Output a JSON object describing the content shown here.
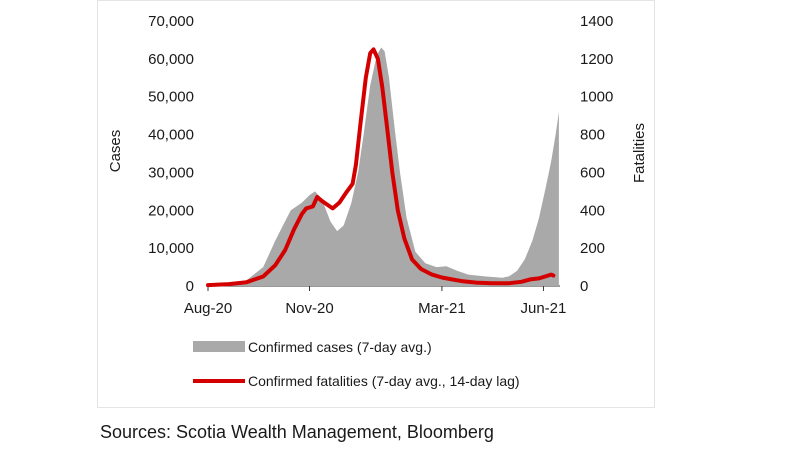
{
  "chart_data": {
    "type": "area",
    "xlabel": "",
    "ylabel": "Cases",
    "y2label": "Fatalities",
    "x_tick_labels": [
      "Aug-20",
      "Nov-20",
      "Mar-21",
      "Jun-21"
    ],
    "x_tick_dates": [
      "2020-08-01",
      "2020-11-01",
      "2021-03-01",
      "2021-06-01"
    ],
    "y_ticks": [
      "0",
      "10,000",
      "20,000",
      "30,000",
      "40,000",
      "50,000",
      "60,000",
      "70,000"
    ],
    "y2_ticks": [
      "0",
      "200",
      "400",
      "600",
      "800",
      "1000",
      "1200",
      "1400"
    ],
    "ylim": [
      0,
      70000
    ],
    "y2lim": [
      0,
      1400
    ],
    "xlim": [
      "2020-08-01",
      "2021-06-16"
    ],
    "grid": false,
    "legend_position": "bottom",
    "series": [
      {
        "name": "Confirmed cases (7-day avg.)",
        "type": "area",
        "axis": "left",
        "color": "#a9a9a9",
        "points": [
          [
            "2020-08-01",
            300
          ],
          [
            "2020-08-20",
            500
          ],
          [
            "2020-09-05",
            1500
          ],
          [
            "2020-09-20",
            5000
          ],
          [
            "2020-10-01",
            12000
          ],
          [
            "2020-10-08",
            16000
          ],
          [
            "2020-10-15",
            20000
          ],
          [
            "2020-10-25",
            22000
          ],
          [
            "2020-11-01",
            24000
          ],
          [
            "2020-11-06",
            25000
          ],
          [
            "2020-11-12",
            23000
          ],
          [
            "2020-11-20",
            17000
          ],
          [
            "2020-11-26",
            14500
          ],
          [
            "2020-12-02",
            16000
          ],
          [
            "2020-12-09",
            22000
          ],
          [
            "2020-12-15",
            30000
          ],
          [
            "2020-12-20",
            40000
          ],
          [
            "2020-12-26",
            53000
          ],
          [
            "2021-01-01",
            61000
          ],
          [
            "2021-01-05",
            63000
          ],
          [
            "2021-01-08",
            62000
          ],
          [
            "2021-01-12",
            55000
          ],
          [
            "2021-01-17",
            42000
          ],
          [
            "2021-01-22",
            30000
          ],
          [
            "2021-01-28",
            18000
          ],
          [
            "2021-02-05",
            9000
          ],
          [
            "2021-02-14",
            6000
          ],
          [
            "2021-02-24",
            5000
          ],
          [
            "2021-03-05",
            5200
          ],
          [
            "2021-03-15",
            4000
          ],
          [
            "2021-03-25",
            3000
          ],
          [
            "2021-04-10",
            2500
          ],
          [
            "2021-04-25",
            2200
          ],
          [
            "2021-05-01",
            2600
          ],
          [
            "2021-05-08",
            4000
          ],
          [
            "2021-05-15",
            7000
          ],
          [
            "2021-05-22",
            12000
          ],
          [
            "2021-05-28",
            18000
          ],
          [
            "2021-06-03",
            26000
          ],
          [
            "2021-06-08",
            33000
          ],
          [
            "2021-06-12",
            40000
          ],
          [
            "2021-06-15",
            46000
          ]
        ]
      },
      {
        "name": "Confirmed fatalities (7-day avg., 14-day lag)",
        "type": "line",
        "axis": "right",
        "color": "#d40000",
        "points": [
          [
            "2020-08-01",
            5
          ],
          [
            "2020-08-20",
            10
          ],
          [
            "2020-09-05",
            20
          ],
          [
            "2020-09-20",
            50
          ],
          [
            "2020-10-01",
            110
          ],
          [
            "2020-10-10",
            190
          ],
          [
            "2020-10-18",
            300
          ],
          [
            "2020-10-25",
            380
          ],
          [
            "2020-10-29",
            410
          ],
          [
            "2020-11-04",
            420
          ],
          [
            "2020-11-08",
            470
          ],
          [
            "2020-11-12",
            450
          ],
          [
            "2020-11-17",
            430
          ],
          [
            "2020-11-22",
            410
          ],
          [
            "2020-11-28",
            440
          ],
          [
            "2020-12-05",
            500
          ],
          [
            "2020-12-10",
            540
          ],
          [
            "2020-12-13",
            640
          ],
          [
            "2020-12-17",
            850
          ],
          [
            "2020-12-22",
            1100
          ],
          [
            "2020-12-26",
            1230
          ],
          [
            "2020-12-29",
            1250
          ],
          [
            "2021-01-02",
            1200
          ],
          [
            "2021-01-06",
            1050
          ],
          [
            "2021-01-10",
            850
          ],
          [
            "2021-01-15",
            600
          ],
          [
            "2021-01-20",
            400
          ],
          [
            "2021-01-26",
            250
          ],
          [
            "2021-02-02",
            140
          ],
          [
            "2021-02-10",
            90
          ],
          [
            "2021-02-20",
            60
          ],
          [
            "2021-03-01",
            45
          ],
          [
            "2021-03-10",
            35
          ],
          [
            "2021-03-20",
            25
          ],
          [
            "2021-04-01",
            18
          ],
          [
            "2021-04-15",
            15
          ],
          [
            "2021-05-01",
            15
          ],
          [
            "2021-05-12",
            22
          ],
          [
            "2021-05-20",
            35
          ],
          [
            "2021-05-28",
            40
          ],
          [
            "2021-06-05",
            55
          ],
          [
            "2021-06-08",
            60
          ],
          [
            "2021-06-10",
            55
          ]
        ]
      }
    ]
  },
  "source": "Sources: Scotia Wealth Management, Bloomberg"
}
